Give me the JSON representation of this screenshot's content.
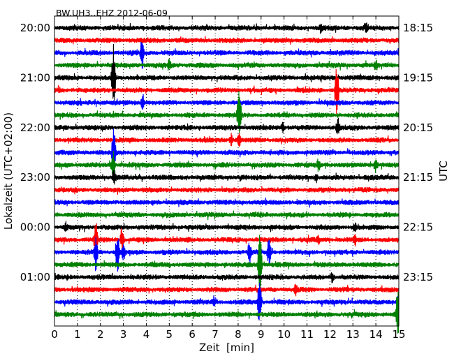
{
  "chart_data": {
    "type": "line",
    "title": "BW.UH3..EHZ 2012-06-09",
    "xlabel": "Zeit  [min]",
    "ylabel_left": "Lokalzeit (UTC+02:00)",
    "ylabel_right": "UTC",
    "xlim": [
      0,
      15
    ],
    "x_ticks": [
      "0",
      "1",
      "2",
      "3",
      "4",
      "5",
      "6",
      "7",
      "8",
      "9",
      "10",
      "11",
      "12",
      "13",
      "14",
      "15"
    ],
    "left_tick_labels": [
      "20:00",
      "21:00",
      "22:00",
      "23:00",
      "00:00",
      "01:00"
    ],
    "right_tick_labels": [
      "18:15",
      "19:15",
      "20:15",
      "21:15",
      "22:15",
      "23:15"
    ],
    "trace_count": 24,
    "trace_interval_minutes": 15,
    "trace_colors": [
      "#000000",
      "#ff0000",
      "#0000ff",
      "#008000"
    ],
    "grid": "vertical dotted lines at each minute",
    "events": [
      {
        "trace": 2,
        "x": 3.82,
        "amp": 30
      },
      {
        "trace": 6,
        "x": 3.85,
        "amp": 12
      },
      {
        "trace": 4,
        "x": 2.57,
        "amp": 60
      },
      {
        "trace": 10,
        "x": 2.6,
        "amp": 10
      },
      {
        "trace": 5,
        "x": 12.3,
        "amp": 45
      },
      {
        "trace": 8,
        "x": 12.35,
        "amp": 12
      },
      {
        "trace": 7,
        "x": 8.05,
        "amp": 45
      },
      {
        "trace": 9,
        "x": 8.05,
        "amp": 10
      },
      {
        "trace": 10,
        "x": 2.58,
        "amp": 60
      },
      {
        "trace": 11,
        "x": 2.55,
        "amp": 25
      },
      {
        "trace": 19,
        "x": 8.95,
        "amp": 60
      },
      {
        "trace": 22,
        "x": 8.93,
        "amp": 40
      },
      {
        "trace": 23,
        "x": 14.95,
        "amp": 40
      },
      {
        "trace": 22,
        "x": 15.0,
        "amp": 20
      },
      {
        "trace": 18,
        "x": 2.75,
        "amp": 35
      },
      {
        "trace": 18,
        "x": 1.8,
        "amp": 30
      },
      {
        "trace": 17,
        "x": 1.8,
        "amp": 35
      },
      {
        "trace": 17,
        "x": 2.95,
        "amp": 20
      },
      {
        "trace": 18,
        "x": 3.0,
        "amp": 15
      },
      {
        "trace": 18,
        "x": 8.5,
        "amp": 20
      },
      {
        "trace": 18,
        "x": 9.35,
        "amp": 25
      },
      {
        "trace": 20,
        "x": 12.1,
        "amp": 8
      },
      {
        "trace": 21,
        "x": 10.5,
        "amp": 10
      },
      {
        "trace": 22,
        "x": 6.95,
        "amp": 9
      },
      {
        "trace": 0,
        "x": 11.6,
        "amp": 8
      },
      {
        "trace": 0,
        "x": 13.6,
        "amp": 9
      },
      {
        "trace": 3,
        "x": 14.0,
        "amp": 10
      },
      {
        "trace": 3,
        "x": 5.0,
        "amp": 10
      },
      {
        "trace": 8,
        "x": 9.95,
        "amp": 8
      },
      {
        "trace": 8,
        "x": 12.35,
        "amp": 14
      },
      {
        "trace": 9,
        "x": 7.7,
        "amp": 9
      },
      {
        "trace": 11,
        "x": 14.0,
        "amp": 12
      },
      {
        "trace": 11,
        "x": 11.5,
        "amp": 10
      },
      {
        "trace": 12,
        "x": 2.6,
        "amp": 12
      },
      {
        "trace": 12,
        "x": 11.4,
        "amp": 8
      },
      {
        "trace": 16,
        "x": 0.5,
        "amp": 9
      },
      {
        "trace": 16,
        "x": 13.1,
        "amp": 9
      },
      {
        "trace": 17,
        "x": 11.5,
        "amp": 7
      },
      {
        "trace": 17,
        "x": 13.1,
        "amp": 9
      }
    ]
  }
}
